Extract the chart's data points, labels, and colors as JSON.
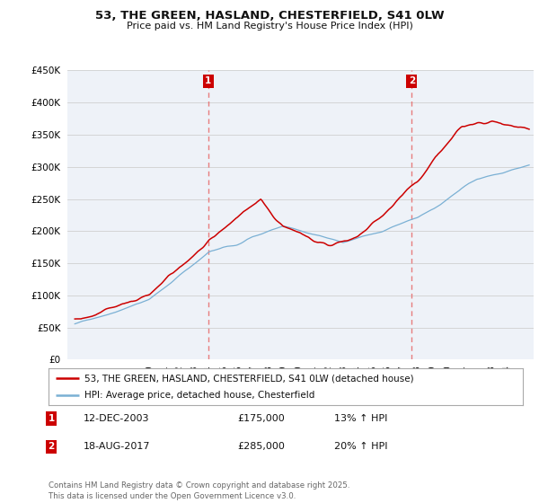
{
  "title_line1": "53, THE GREEN, HASLAND, CHESTERFIELD, S41 0LW",
  "title_line2": "Price paid vs. HM Land Registry's House Price Index (HPI)",
  "ytick_values": [
    0,
    50000,
    100000,
    150000,
    200000,
    250000,
    300000,
    350000,
    400000,
    450000
  ],
  "xlim_start": 1994.5,
  "xlim_end": 2025.8,
  "ylim_min": 0,
  "ylim_max": 450000,
  "sale1_x": 2003.95,
  "sale1_label": "1",
  "sale2_x": 2017.62,
  "sale2_label": "2",
  "red_color": "#cc0000",
  "blue_color": "#7ab0d4",
  "vline_color": "#e87070",
  "grid_color": "#d0d0d0",
  "background_color": "#ffffff",
  "plot_bg_color": "#eef2f8",
  "legend_line1": "53, THE GREEN, HASLAND, CHESTERFIELD, S41 0LW (detached house)",
  "legend_line2": "HPI: Average price, detached house, Chesterfield",
  "table_row1": [
    "1",
    "12-DEC-2003",
    "£175,000",
    "13% ↑ HPI"
  ],
  "table_row2": [
    "2",
    "18-AUG-2017",
    "£285,000",
    "20% ↑ HPI"
  ],
  "footer": "Contains HM Land Registry data © Crown copyright and database right 2025.\nThis data is licensed under the Open Government Licence v3.0."
}
